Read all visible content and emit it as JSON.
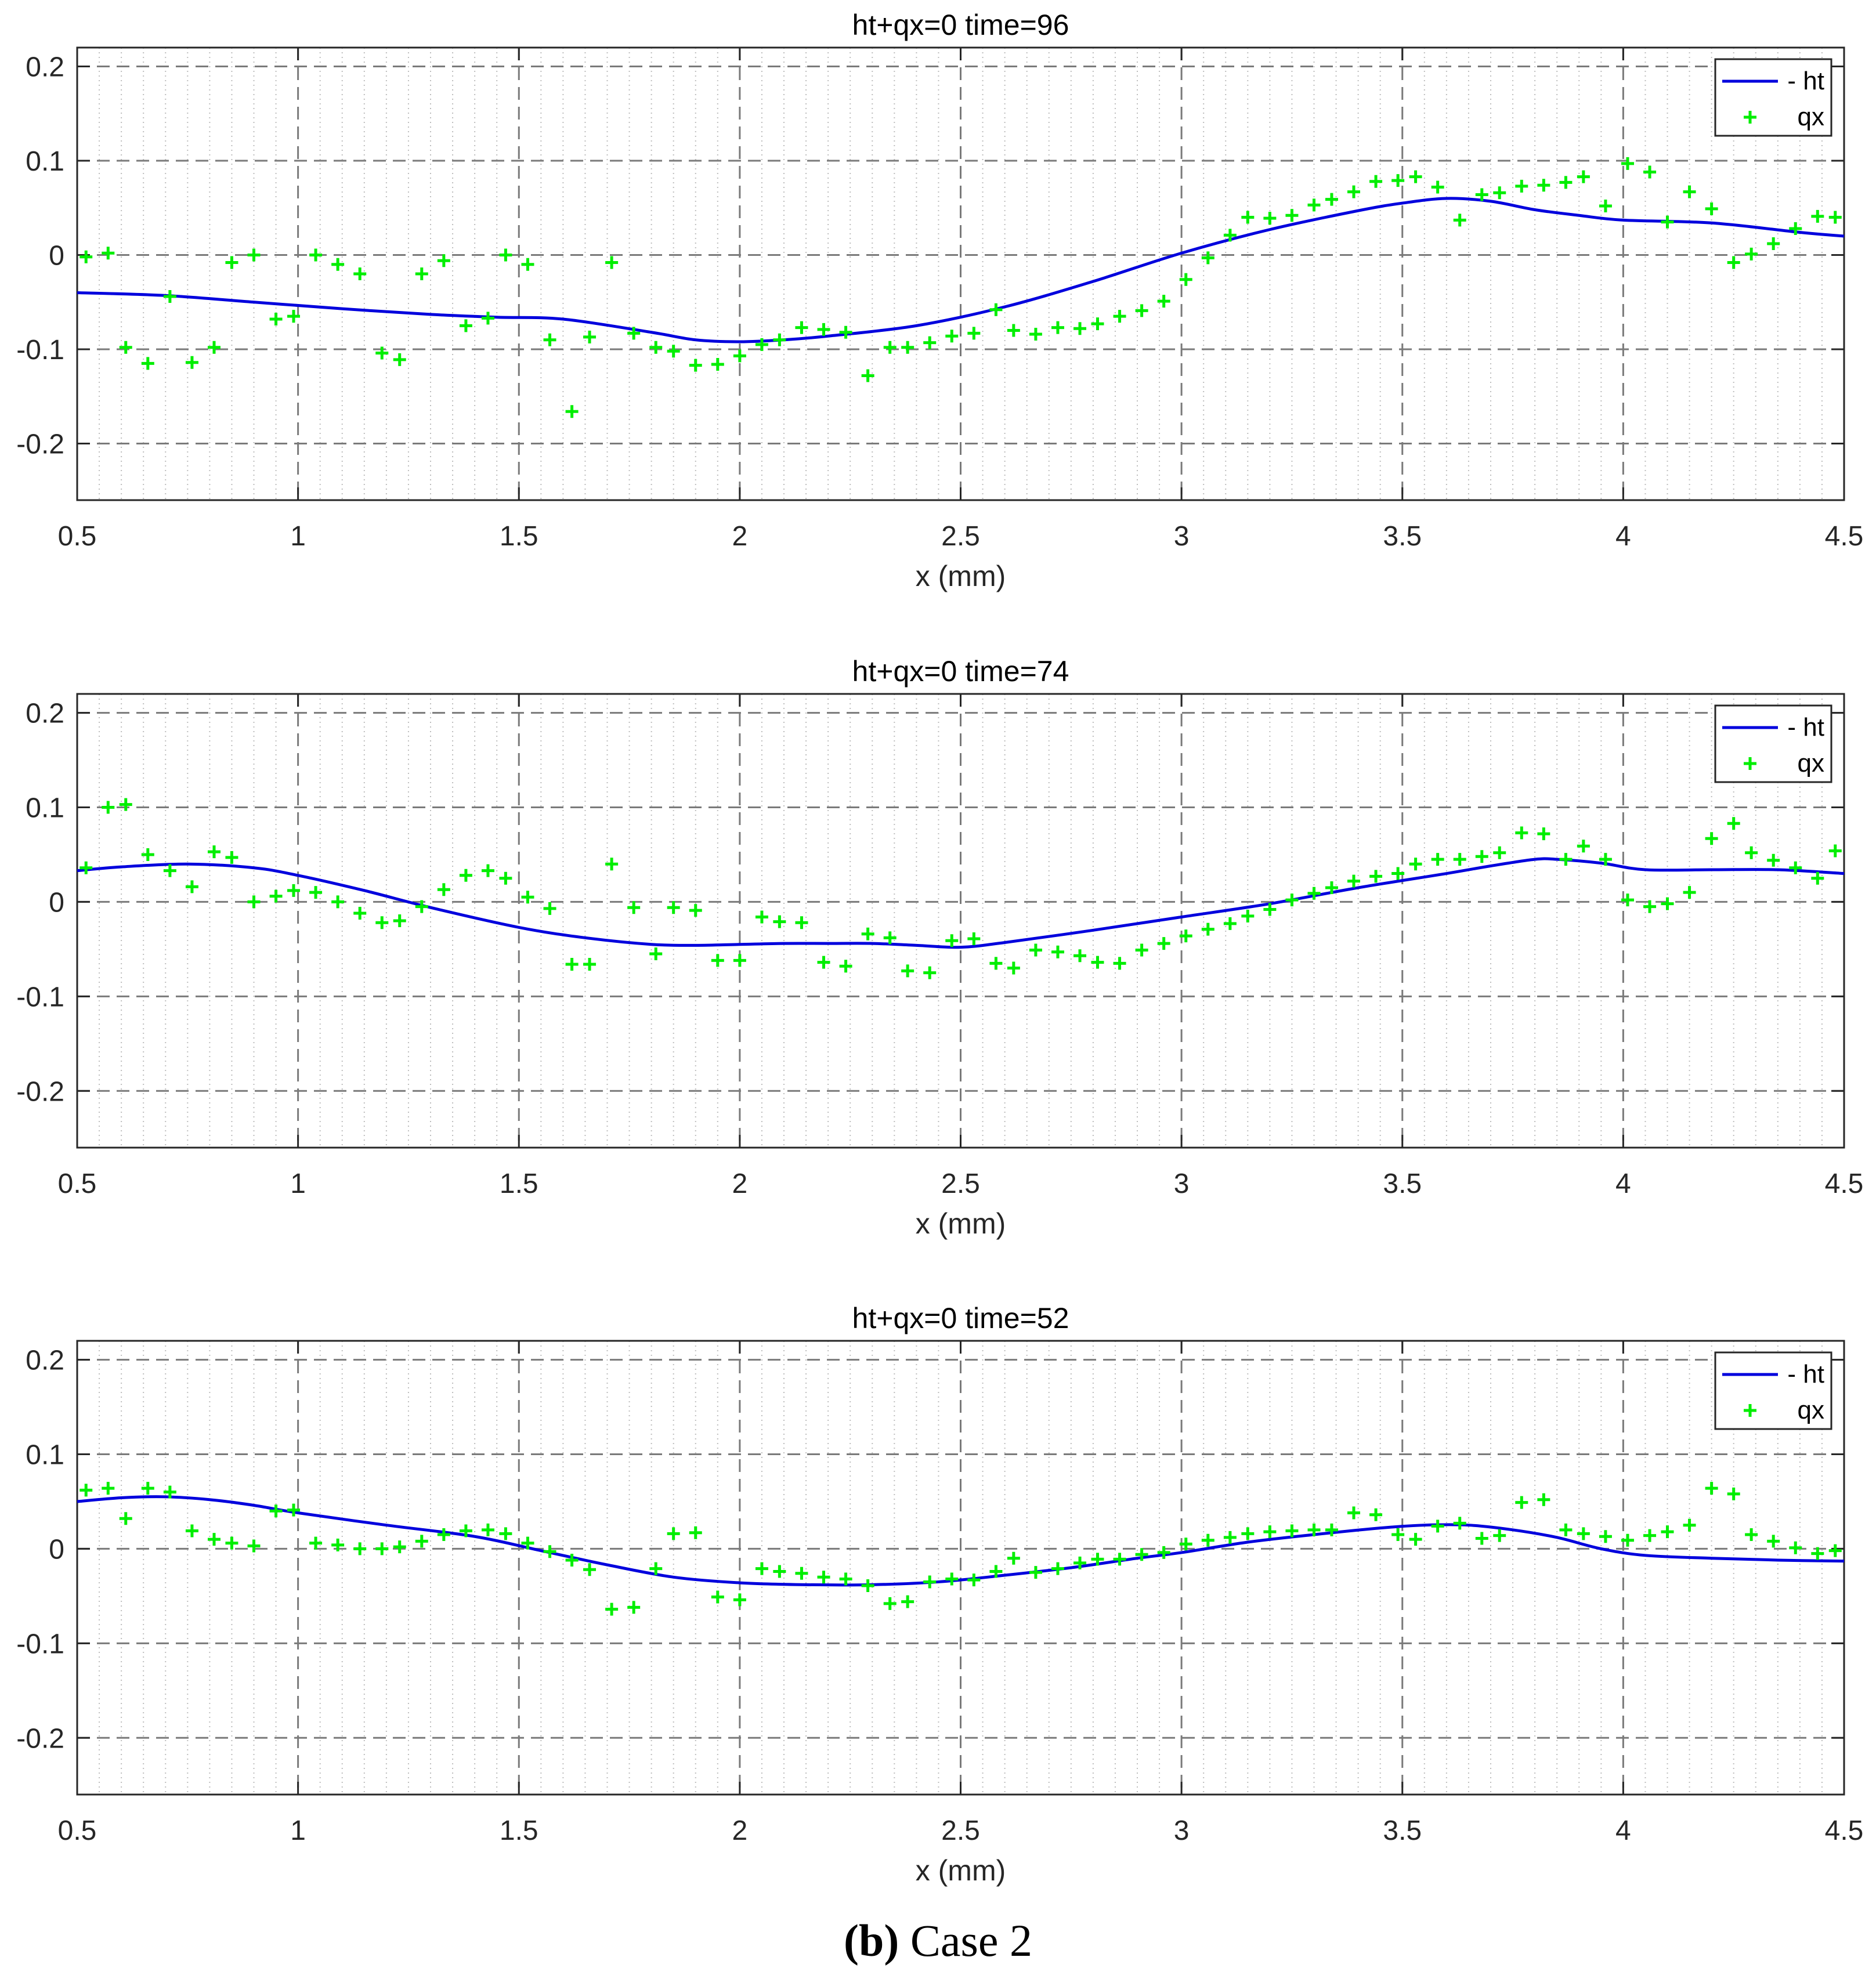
{
  "chart_data": [
    {
      "type": "line",
      "title": "ht+qx=0  time=96",
      "xlabel": "x (mm)",
      "ylabel": "",
      "xlim": [
        0.5,
        4.5
      ],
      "ylim": [
        -0.26,
        0.22
      ],
      "xticks": [
        0.5,
        1,
        1.5,
        2,
        2.5,
        3,
        3.5,
        4,
        4.5
      ],
      "yticks": [
        0.2,
        0.1,
        0,
        -0.1,
        -0.2
      ],
      "xticklabels": [
        "0.5",
        "1",
        "1.5",
        "2",
        "2.5",
        "3",
        "3.5",
        "4",
        "4.5"
      ],
      "yticklabels": [
        "0.2",
        "0.1",
        "0",
        "-0.1",
        "-0.2"
      ],
      "grid": true,
      "legend_position": "top-right",
      "series": [
        {
          "name": "- ht",
          "style": "line",
          "color": "#0000dd",
          "x": [
            0.5,
            0.7,
            0.9,
            1.1,
            1.3,
            1.45,
            1.6,
            1.8,
            1.9,
            2.0,
            2.1,
            2.2,
            2.4,
            2.6,
            2.8,
            3.0,
            3.2,
            3.4,
            3.5,
            3.6,
            3.7,
            3.8,
            3.9,
            4.0,
            4.2,
            4.4,
            4.5
          ],
          "y": [
            -0.04,
            -0.043,
            -0.05,
            -0.057,
            -0.063,
            -0.066,
            -0.068,
            -0.082,
            -0.09,
            -0.092,
            -0.09,
            -0.086,
            -0.075,
            -0.055,
            -0.028,
            0.002,
            0.027,
            0.047,
            0.055,
            0.06,
            0.057,
            0.048,
            0.042,
            0.037,
            0.034,
            0.024,
            0.02
          ]
        },
        {
          "name": "qx",
          "style": "markers",
          "color": "#00ee00",
          "x": [
            0.52,
            0.57,
            0.61,
            0.66,
            0.71,
            0.76,
            0.81,
            0.85,
            0.9,
            0.95,
            0.99,
            1.04,
            1.09,
            1.14,
            1.19,
            1.23,
            1.28,
            1.33,
            1.38,
            1.43,
            1.47,
            1.52,
            1.57,
            1.62,
            1.66,
            1.71,
            1.76,
            1.81,
            1.85,
            1.9,
            1.95,
            2.0,
            2.05,
            2.09,
            2.14,
            2.19,
            2.24,
            2.29,
            2.34,
            2.38,
            2.43,
            2.48,
            2.53,
            2.58,
            2.62,
            2.67,
            2.72,
            2.77,
            2.81,
            2.86,
            2.91,
            2.96,
            3.01,
            3.06,
            3.11,
            3.15,
            3.2,
            3.25,
            3.3,
            3.34,
            3.39,
            3.44,
            3.49,
            3.53,
            3.58,
            3.63,
            3.68,
            3.72,
            3.77,
            3.82,
            3.87,
            3.91,
            3.96,
            4.01,
            4.06,
            4.1,
            4.15,
            4.2,
            4.25,
            4.29,
            4.34,
            4.39,
            4.44,
            4.48
          ],
          "y": [
            -0.002,
            0.002,
            -0.098,
            -0.115,
            -0.044,
            -0.114,
            -0.098,
            -0.008,
            0.0,
            -0.068,
            -0.065,
            0.0,
            -0.01,
            -0.02,
            -0.104,
            -0.111,
            -0.02,
            -0.006,
            -0.075,
            -0.067,
            0.0,
            -0.01,
            -0.09,
            -0.166,
            -0.087,
            -0.008,
            -0.083,
            -0.098,
            -0.102,
            -0.117,
            -0.116,
            -0.107,
            -0.095,
            -0.09,
            -0.077,
            -0.079,
            -0.082,
            -0.128,
            -0.098,
            -0.098,
            -0.093,
            -0.086,
            -0.083,
            -0.058,
            -0.08,
            -0.084,
            -0.077,
            -0.078,
            -0.073,
            -0.065,
            -0.059,
            -0.049,
            -0.026,
            -0.003,
            0.021,
            0.04,
            0.039,
            0.042,
            0.053,
            0.059,
            0.067,
            0.078,
            0.079,
            0.083,
            0.072,
            0.037,
            0.064,
            0.066,
            0.073,
            0.074,
            0.077,
            0.083,
            0.052,
            0.097,
            0.088,
            0.035,
            0.067,
            0.049,
            -0.008,
            0.001,
            0.012,
            0.028,
            0.041,
            0.04
          ]
        }
      ]
    },
    {
      "type": "line",
      "title": "ht+qx=0  time=74",
      "xlabel": "x (mm)",
      "ylabel": "",
      "xlim": [
        0.5,
        4.5
      ],
      "ylim": [
        -0.26,
        0.22
      ],
      "xticks": [
        0.5,
        1,
        1.5,
        2,
        2.5,
        3,
        3.5,
        4,
        4.5
      ],
      "yticks": [
        0.2,
        0.1,
        0,
        -0.1,
        -0.2
      ],
      "xticklabels": [
        "0.5",
        "1",
        "1.5",
        "2",
        "2.5",
        "3",
        "3.5",
        "4",
        "4.5"
      ],
      "yticklabels": [
        "0.2",
        "0.1",
        "0",
        "-0.1",
        "-0.2"
      ],
      "grid": true,
      "legend_position": "top-right",
      "series": [
        {
          "name": "- ht",
          "style": "line",
          "color": "#0000dd",
          "x": [
            0.5,
            0.6,
            0.75,
            0.9,
            1.0,
            1.15,
            1.3,
            1.5,
            1.65,
            1.8,
            1.9,
            2.0,
            2.1,
            2.2,
            2.3,
            2.4,
            2.5,
            2.6,
            2.8,
            3.0,
            3.2,
            3.4,
            3.6,
            3.7,
            3.8,
            3.85,
            3.95,
            4.05,
            4.2,
            4.35,
            4.5
          ],
          "y": [
            0.033,
            0.037,
            0.04,
            0.036,
            0.028,
            0.012,
            -0.006,
            -0.027,
            -0.038,
            -0.045,
            -0.046,
            -0.045,
            -0.044,
            -0.044,
            -0.044,
            -0.046,
            -0.048,
            -0.043,
            -0.03,
            -0.016,
            -0.002,
            0.015,
            0.03,
            0.038,
            0.045,
            0.045,
            0.041,
            0.034,
            0.034,
            0.034,
            0.03
          ]
        },
        {
          "name": "qx",
          "style": "markers",
          "color": "#00ee00",
          "x": [
            0.52,
            0.57,
            0.61,
            0.66,
            0.71,
            0.76,
            0.81,
            0.85,
            0.9,
            0.95,
            0.99,
            1.04,
            1.09,
            1.14,
            1.19,
            1.23,
            1.28,
            1.33,
            1.38,
            1.43,
            1.47,
            1.52,
            1.57,
            1.62,
            1.66,
            1.71,
            1.76,
            1.81,
            1.85,
            1.9,
            1.95,
            2.0,
            2.05,
            2.09,
            2.14,
            2.19,
            2.24,
            2.29,
            2.34,
            2.38,
            2.43,
            2.48,
            2.53,
            2.58,
            2.62,
            2.67,
            2.72,
            2.77,
            2.81,
            2.86,
            2.91,
            2.96,
            3.01,
            3.06,
            3.11,
            3.15,
            3.2,
            3.25,
            3.3,
            3.34,
            3.39,
            3.44,
            3.49,
            3.53,
            3.58,
            3.63,
            3.68,
            3.72,
            3.77,
            3.82,
            3.87,
            3.91,
            3.96,
            4.01,
            4.06,
            4.1,
            4.15,
            4.2,
            4.25,
            4.29,
            4.34,
            4.39,
            4.44,
            4.48
          ],
          "y": [
            0.036,
            0.1,
            0.103,
            0.05,
            0.033,
            0.016,
            0.053,
            0.047,
            0.0,
            0.006,
            0.012,
            0.01,
            0.0,
            -0.012,
            -0.022,
            -0.02,
            -0.005,
            0.013,
            0.028,
            0.033,
            0.025,
            0.005,
            -0.007,
            -0.066,
            -0.066,
            0.04,
            -0.006,
            -0.055,
            -0.006,
            -0.009,
            -0.062,
            -0.062,
            -0.016,
            -0.021,
            -0.022,
            -0.064,
            -0.068,
            -0.034,
            -0.038,
            -0.073,
            -0.075,
            -0.041,
            -0.039,
            -0.065,
            -0.07,
            -0.051,
            -0.053,
            -0.057,
            -0.064,
            -0.065,
            -0.051,
            -0.044,
            -0.036,
            -0.029,
            -0.023,
            -0.015,
            -0.008,
            0.002,
            0.009,
            0.015,
            0.022,
            0.027,
            0.03,
            0.04,
            0.045,
            0.045,
            0.048,
            0.052,
            0.073,
            0.072,
            0.045,
            0.059,
            0.045,
            0.002,
            -0.005,
            -0.002,
            0.01,
            0.067,
            0.083,
            0.052,
            0.044,
            0.036,
            0.025,
            0.054
          ]
        }
      ]
    },
    {
      "type": "line",
      "title": "ht+qx=0  time=52",
      "xlabel": "x (mm)",
      "ylabel": "",
      "xlim": [
        0.5,
        4.5
      ],
      "ylim": [
        -0.26,
        0.22
      ],
      "xticks": [
        0.5,
        1,
        1.5,
        2,
        2.5,
        3,
        3.5,
        4,
        4.5
      ],
      "yticks": [
        0.2,
        0.1,
        0,
        -0.1,
        -0.2
      ],
      "xticklabels": [
        "0.5",
        "1",
        "1.5",
        "2",
        "2.5",
        "3",
        "3.5",
        "4",
        "4.5"
      ],
      "yticklabels": [
        "0.2",
        "0.1",
        "0",
        "-0.1",
        "-0.2"
      ],
      "grid": true,
      "legend_position": "top-right",
      "series": [
        {
          "name": "- ht",
          "style": "line",
          "color": "#0000dd",
          "x": [
            0.5,
            0.6,
            0.7,
            0.8,
            0.9,
            1.0,
            1.2,
            1.4,
            1.55,
            1.7,
            1.85,
            2.0,
            2.15,
            2.3,
            2.45,
            2.6,
            2.75,
            2.9,
            3.0,
            3.15,
            3.3,
            3.45,
            3.55,
            3.65,
            3.75,
            3.85,
            3.95,
            4.05,
            4.2,
            4.35,
            4.5
          ],
          "y": [
            0.05,
            0.054,
            0.055,
            0.052,
            0.046,
            0.038,
            0.025,
            0.013,
            -0.002,
            -0.017,
            -0.03,
            -0.036,
            -0.038,
            -0.038,
            -0.035,
            -0.028,
            -0.02,
            -0.01,
            -0.004,
            0.007,
            0.015,
            0.022,
            0.025,
            0.025,
            0.02,
            0.012,
            0.0,
            -0.007,
            -0.01,
            -0.012,
            -0.013
          ]
        },
        {
          "name": "qx",
          "style": "markers",
          "color": "#00ee00",
          "x": [
            0.52,
            0.57,
            0.61,
            0.66,
            0.71,
            0.76,
            0.81,
            0.85,
            0.9,
            0.95,
            0.99,
            1.04,
            1.09,
            1.14,
            1.19,
            1.23,
            1.28,
            1.33,
            1.38,
            1.43,
            1.47,
            1.52,
            1.57,
            1.62,
            1.66,
            1.71,
            1.76,
            1.81,
            1.85,
            1.9,
            1.95,
            2.0,
            2.05,
            2.09,
            2.14,
            2.19,
            2.24,
            2.29,
            2.34,
            2.38,
            2.43,
            2.48,
            2.53,
            2.58,
            2.62,
            2.67,
            2.72,
            2.77,
            2.81,
            2.86,
            2.91,
            2.96,
            3.01,
            3.06,
            3.11,
            3.15,
            3.2,
            3.25,
            3.3,
            3.34,
            3.39,
            3.44,
            3.49,
            3.53,
            3.58,
            3.63,
            3.68,
            3.72,
            3.77,
            3.82,
            3.87,
            3.91,
            3.96,
            4.01,
            4.06,
            4.1,
            4.15,
            4.2,
            4.25,
            4.29,
            4.34,
            4.39,
            4.44,
            4.48
          ],
          "y": [
            0.062,
            0.064,
            0.032,
            0.064,
            0.06,
            0.019,
            0.01,
            0.006,
            0.003,
            0.04,
            0.041,
            0.006,
            0.004,
            0.0,
            0.0,
            0.002,
            0.008,
            0.015,
            0.019,
            0.02,
            0.016,
            0.006,
            -0.003,
            -0.012,
            -0.022,
            -0.064,
            -0.062,
            -0.021,
            0.016,
            0.017,
            -0.051,
            -0.054,
            -0.021,
            -0.024,
            -0.026,
            -0.03,
            -0.032,
            -0.039,
            -0.058,
            -0.056,
            -0.035,
            -0.032,
            -0.033,
            -0.024,
            -0.01,
            -0.025,
            -0.021,
            -0.015,
            -0.011,
            -0.011,
            -0.006,
            -0.004,
            0.005,
            0.009,
            0.012,
            0.016,
            0.018,
            0.019,
            0.02,
            0.02,
            0.038,
            0.036,
            0.015,
            0.01,
            0.024,
            0.027,
            0.011,
            0.014,
            0.049,
            0.052,
            0.02,
            0.016,
            0.013,
            0.009,
            0.014,
            0.018,
            0.025,
            0.064,
            0.058,
            0.015,
            0.008,
            0.001,
            -0.005,
            -0.002
          ]
        }
      ]
    }
  ],
  "caption": {
    "label": "(b)",
    "text": "Case 2"
  }
}
